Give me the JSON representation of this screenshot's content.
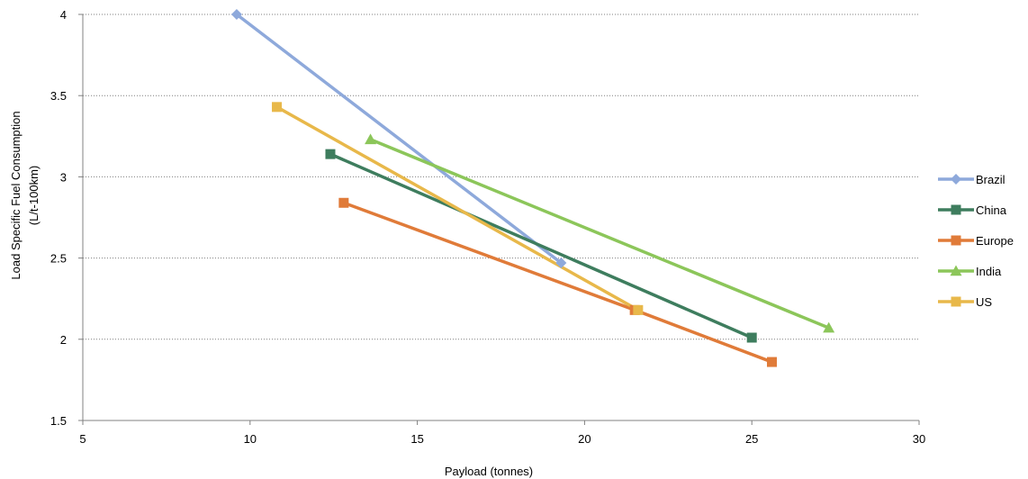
{
  "chart_data": {
    "type": "line",
    "title": "",
    "xlabel": "Payload (tonnes)",
    "ylabel_lines": [
      "Load Specific Fuel Consumption",
      "(L/t-100km)"
    ],
    "xlim": [
      5,
      30
    ],
    "ylim": [
      1.5,
      4
    ],
    "x_ticks": [
      5,
      10,
      15,
      20,
      25,
      30
    ],
    "y_ticks": [
      1.5,
      2,
      2.5,
      3,
      3.5,
      4
    ],
    "x_tick_labels": [
      "5",
      "10",
      "15",
      "20",
      "25",
      "30"
    ],
    "y_tick_labels": [
      "1.5",
      "2",
      "2.5",
      "3",
      "3.5",
      "4"
    ],
    "grid": "horizontal dotted",
    "legend_position": "right",
    "series": [
      {
        "name": "Brazil",
        "marker": "diamond",
        "color": "#8EA9DB",
        "points": [
          {
            "x": 9.6,
            "y": 4.0
          },
          {
            "x": 19.3,
            "y": 2.47
          }
        ]
      },
      {
        "name": "China",
        "marker": "square",
        "color": "#3E7D5E",
        "points": [
          {
            "x": 12.4,
            "y": 3.14
          },
          {
            "x": 25.0,
            "y": 2.01
          }
        ]
      },
      {
        "name": "Europe",
        "marker": "square",
        "color": "#E07B39",
        "points": [
          {
            "x": 12.8,
            "y": 2.84
          },
          {
            "x": 21.5,
            "y": 2.18
          },
          {
            "x": 25.6,
            "y": 1.86
          }
        ]
      },
      {
        "name": "India",
        "marker": "triangle",
        "color": "#8CC65A",
        "points": [
          {
            "x": 13.6,
            "y": 3.23
          },
          {
            "x": 27.3,
            "y": 2.07
          }
        ]
      },
      {
        "name": "US",
        "marker": "square",
        "color": "#E8B84A",
        "points": [
          {
            "x": 10.8,
            "y": 3.43
          },
          {
            "x": 21.6,
            "y": 2.18
          }
        ]
      }
    ]
  }
}
